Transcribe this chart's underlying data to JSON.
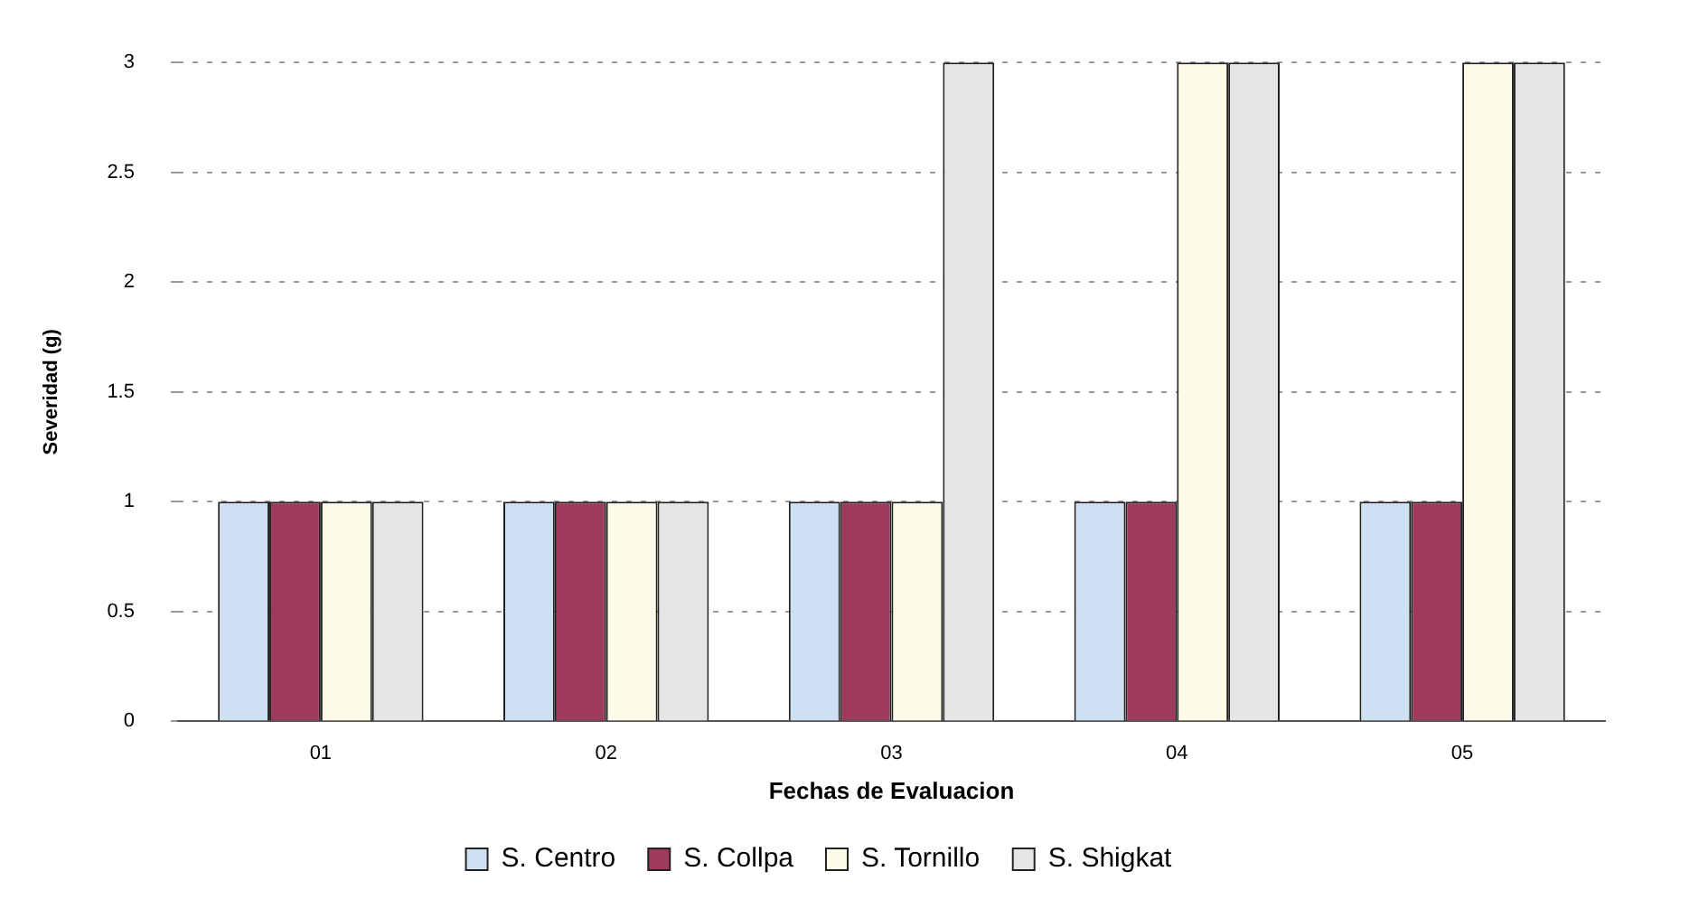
{
  "chart_data": {
    "type": "bar",
    "xlabel": "Fechas de Evaluacion",
    "ylabel": "Severidad (g)",
    "categories": [
      "01",
      "02",
      "03",
      "04",
      "05"
    ],
    "series": [
      {
        "name": "S. Centro",
        "color": "#cfe0f2",
        "values": [
          1,
          1,
          1,
          1,
          1
        ]
      },
      {
        "name": "S. Collpa",
        "color": "#9e3a5a",
        "values": [
          1,
          1,
          1,
          1,
          1
        ]
      },
      {
        "name": "S. Tornillo",
        "color": "#fdfbe8",
        "values": [
          1,
          1,
          1,
          3,
          3
        ]
      },
      {
        "name": "S. Shigkat",
        "color": "#e4e6e6",
        "values": [
          1,
          1,
          3,
          3,
          3
        ]
      }
    ],
    "ylim": [
      0,
      3
    ],
    "yticks": [
      0,
      0.5,
      1,
      1.5,
      2,
      2.5,
      3
    ],
    "grid": "y",
    "legend": "bottom"
  }
}
